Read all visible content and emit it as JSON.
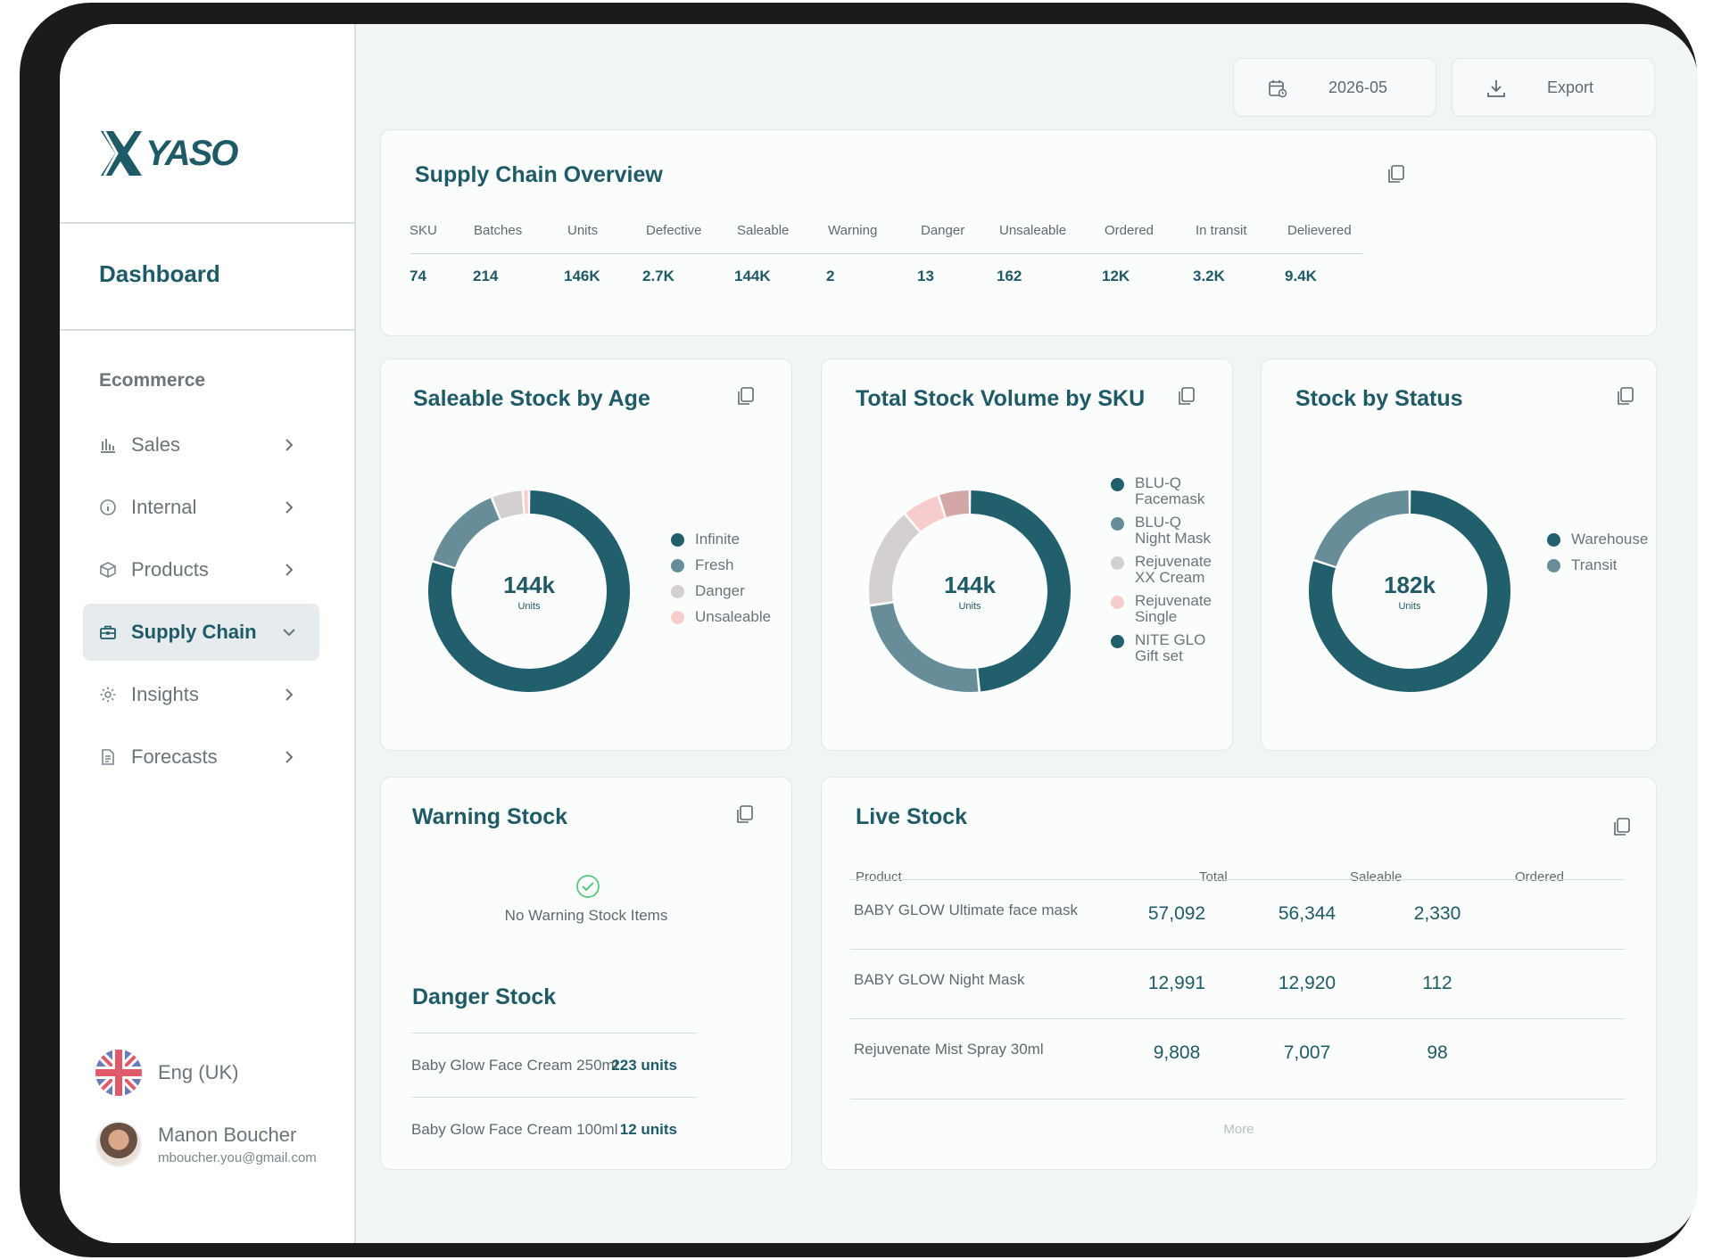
{
  "brand": {
    "name": "YASO"
  },
  "sidebar": {
    "page_title": "Dashboard",
    "section": "Ecommerce",
    "items": [
      {
        "label": "Sales",
        "icon": "bar-chart-icon"
      },
      {
        "label": "Internal",
        "icon": "info-icon"
      },
      {
        "label": "Products",
        "icon": "box-icon"
      },
      {
        "label": "Supply Chain",
        "icon": "briefcase-icon",
        "active": true
      },
      {
        "label": "Insights",
        "icon": "gear-icon"
      },
      {
        "label": "Forecasts",
        "icon": "document-icon"
      }
    ],
    "language": "Eng (UK)",
    "user": {
      "name": "Manon Boucher",
      "email": "mboucher.you@gmail.com"
    }
  },
  "toolbar": {
    "date": "2026-05",
    "export_label": "Export"
  },
  "overview": {
    "title": "Supply Chain Overview",
    "headers": [
      "SKU",
      "Batches",
      "Units",
      "Defective",
      "Saleable",
      "Warning",
      "Danger",
      "Unsaleable",
      "Ordered",
      "In transit",
      "Delievered"
    ],
    "values": [
      "74",
      "214",
      "146K",
      "2.7K",
      "144K",
      "2",
      "13",
      "162",
      "12K",
      "3.2K",
      "9.4K"
    ]
  },
  "colors": {
    "primary": "#215f6c",
    "secondary": "#678e98",
    "grey": "#d4d0d0",
    "pink": "#f7cccc",
    "rose": "#d3a6a8"
  },
  "chart_data": [
    {
      "type": "pie",
      "title": "Saleable Stock by Age",
      "center_value": "144k",
      "center_unit": "Units",
      "labels": [
        "Infinite",
        "Fresh",
        "Danger",
        "Unsaleable"
      ],
      "values": [
        79,
        14,
        5,
        1
      ]
    },
    {
      "type": "pie",
      "title": "Total Stock Volume by SKU",
      "center_value": "144k",
      "center_unit": "Units",
      "labels": [
        "BLU-Q Facemask",
        "BLU-Q Night Mask",
        "Rejuvenate XX Cream",
        "Rejuvenate Single",
        "NITE GLO Gift set"
      ],
      "values": [
        48,
        24,
        16,
        6,
        5
      ]
    },
    {
      "type": "pie",
      "title": "Stock by Status",
      "center_value": "182k",
      "center_unit": "Units",
      "labels": [
        "Warehouse",
        "Transit"
      ],
      "values": [
        80,
        20
      ]
    }
  ],
  "warning": {
    "title": "Warning Stock",
    "empty_message": "No Warning Stock Items"
  },
  "danger": {
    "title": "Danger Stock",
    "rows": [
      {
        "name": "Baby Glow Face Cream 250ml",
        "value": "223 units"
      },
      {
        "name": "Baby Glow Face Cream 100ml",
        "value": "12 units"
      }
    ]
  },
  "live_stock": {
    "title": "Live Stock",
    "headers": [
      "Product",
      "Total",
      "Saleable",
      "Ordered"
    ],
    "rows": [
      {
        "product": "BABY GLOW Ultimate face mask",
        "total": "57,092",
        "saleable": "56,344",
        "ordered": "2,330"
      },
      {
        "product": "BABY GLOW Night Mask",
        "total": "12,991",
        "saleable": "12,920",
        "ordered": "112"
      },
      {
        "product": "Rejuvenate Mist Spray 30ml",
        "total": "9,808",
        "saleable": "7,007",
        "ordered": "98"
      }
    ],
    "more_label": "More"
  }
}
